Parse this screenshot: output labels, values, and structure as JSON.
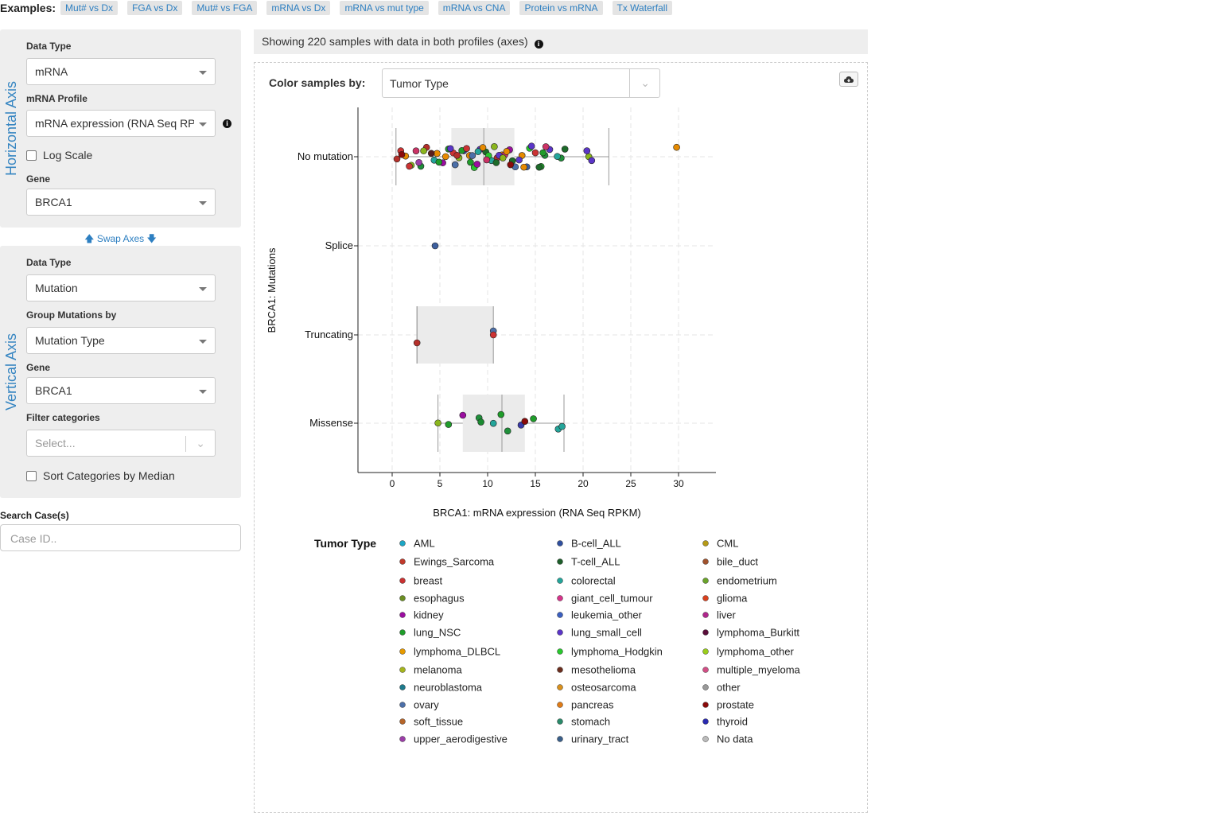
{
  "examples": {
    "label": "Examples:",
    "items": [
      "Mut# vs Dx",
      "FGA vs Dx",
      "Mut# vs FGA",
      "mRNA vs Dx",
      "mRNA vs mut type",
      "mRNA vs CNA",
      "Protein vs mRNA",
      "Tx Waterfall"
    ]
  },
  "horizontal": {
    "title": "Horizontal Axis",
    "data_type_label": "Data Type",
    "data_type_value": "mRNA",
    "profile_label": "mRNA Profile",
    "profile_value": "mRNA expression (RNA Seq RP...",
    "log_scale_label": "Log Scale",
    "gene_label": "Gene",
    "gene_value": "BRCA1"
  },
  "swap_label": "Swap Axes",
  "vertical": {
    "title": "Vertical Axis",
    "data_type_label": "Data Type",
    "data_type_value": "Mutation",
    "group_label": "Group Mutations by",
    "group_value": "Mutation Type",
    "gene_label": "Gene",
    "gene_value": "BRCA1",
    "filter_label": "Filter categories",
    "filter_placeholder": "Select...",
    "sort_label": "Sort Categories by Median"
  },
  "search": {
    "label": "Search Case(s)",
    "placeholder": "Case ID.."
  },
  "showing_text": "Showing 220 samples with data in both profiles (axes)",
  "color_by": {
    "label": "Color samples by:",
    "value": "Tumor Type"
  },
  "chart_data": {
    "type": "scatter",
    "subtype": "horizontal box plot with jittered points",
    "xlabel": "BRCA1: mRNA expression (RNA Seq RPKM)",
    "ylabel": "BRCA1: Mutations",
    "xlim": [
      -3.5,
      34
    ],
    "xticks": [
      0,
      5,
      10,
      15,
      20,
      25,
      30
    ],
    "grid": true,
    "categories": [
      "No mutation",
      "Splice",
      "Truncating",
      "Missense"
    ],
    "boxes": [
      {
        "category": "No mutation",
        "whisker_low": 0.4,
        "q1": 6.2,
        "median": 9.6,
        "q3": 12.8,
        "whisker_high": 22.7
      },
      {
        "category": "Truncating",
        "whisker_low": 2.6,
        "q1": 2.6,
        "median": 2.6,
        "q3": 10.6,
        "whisker_high": 10.6
      },
      {
        "category": "Missense",
        "whisker_low": 4.8,
        "q1": 7.4,
        "median": 11.5,
        "q3": 13.9,
        "whisker_high": 18.0
      }
    ],
    "points": {
      "Splice": [
        {
          "x": 4.5,
          "color": "#3d5f9e"
        }
      ],
      "Truncating": [
        {
          "x": 10.6,
          "color": "#4c6fa8"
        },
        {
          "x": 10.6,
          "color": "#cc3333"
        },
        {
          "x": 2.6,
          "color": "#b5302a"
        }
      ],
      "Missense": [
        {
          "x": 4.8,
          "color": "#8ab51c"
        },
        {
          "x": 5.9,
          "color": "#1f9c2a"
        },
        {
          "x": 7.4,
          "color": "#9b0ea0"
        },
        {
          "x": 9.1,
          "color": "#1f8f3a"
        },
        {
          "x": 9.3,
          "color": "#1a8a30"
        },
        {
          "x": 10.6,
          "color": "#23a59a"
        },
        {
          "x": 11.4,
          "color": "#1f9c2a"
        },
        {
          "x": 12.1,
          "color": "#1f8f3a"
        },
        {
          "x": 13.5,
          "color": "#3a3aa8"
        },
        {
          "x": 13.9,
          "color": "#8a0a0a"
        },
        {
          "x": 14.8,
          "color": "#1f9c2a"
        },
        {
          "x": 17.4,
          "color": "#23a59a"
        },
        {
          "x": 17.8,
          "color": "#23a59a"
        }
      ],
      "No mutation": [
        {
          "x": 29.8,
          "color": "#e68a00"
        },
        {
          "x": 20.6,
          "color": "#8ab51c"
        },
        {
          "x": 20.4,
          "color": "#5b35c8"
        },
        {
          "x": 20.9,
          "color": "#5b35c8"
        },
        {
          "x": 18.1,
          "color": "#1d6b2a"
        },
        {
          "x": 17.7,
          "color": "#1f8f3a"
        },
        {
          "x": 17.3,
          "color": "#23a59a"
        },
        {
          "x": 16.5,
          "color": "#5b35c8"
        },
        {
          "x": 16.1,
          "color": "#cc3366"
        },
        {
          "x": 15.6,
          "color": "#1f9c2a"
        },
        {
          "x": 15.4,
          "color": "#1d6b2a"
        },
        {
          "x": 14.4,
          "color": "#29c72e"
        },
        {
          "x": 13.6,
          "color": "#e68a00"
        },
        {
          "x": 12.9,
          "color": "#4c6fa8"
        },
        {
          "x": 12.3,
          "color": "#9b0ea0"
        },
        {
          "x": 11.5,
          "color": "#e68a00"
        },
        {
          "x": 11.0,
          "color": "#b5302a"
        },
        {
          "x": 10.4,
          "color": "#23a59a"
        },
        {
          "x": 9.8,
          "color": "#1d6b2a"
        },
        {
          "x": 9.2,
          "color": "#5b35c8"
        },
        {
          "x": 8.6,
          "color": "#29c72e"
        },
        {
          "x": 8.1,
          "color": "#e68a00"
        },
        {
          "x": 7.5,
          "color": "#3a3aa8"
        },
        {
          "x": 7.0,
          "color": "#8ab51c"
        },
        {
          "x": 6.4,
          "color": "#cc3333"
        },
        {
          "x": 5.9,
          "color": "#1f9c2a"
        },
        {
          "x": 5.3,
          "color": "#9b0ea0"
        },
        {
          "x": 4.7,
          "color": "#e68a00"
        },
        {
          "x": 4.1,
          "color": "#5a1e1e"
        },
        {
          "x": 3.6,
          "color": "#b5302a"
        },
        {
          "x": 3.0,
          "color": "#1f8f3a"
        },
        {
          "x": 2.5,
          "color": "#cc3366"
        },
        {
          "x": 2.0,
          "color": "#8ab51c"
        },
        {
          "x": 1.4,
          "color": "#e68a00"
        },
        {
          "x": 0.9,
          "color": "#cc3333"
        },
        {
          "x": 0.5,
          "color": "#b5302a"
        },
        {
          "x": 1.0,
          "color": "#8a0a0a"
        },
        {
          "x": 2.8,
          "color": "#9b3ea8"
        },
        {
          "x": 4.4,
          "color": "#23a59a"
        },
        {
          "x": 6.1,
          "color": "#5b35c8"
        },
        {
          "x": 7.3,
          "color": "#1f9c2a"
        },
        {
          "x": 8.4,
          "color": "#4c6fa8"
        },
        {
          "x": 9.5,
          "color": "#e68a00"
        },
        {
          "x": 10.7,
          "color": "#8ab51c"
        },
        {
          "x": 11.8,
          "color": "#cc3366"
        },
        {
          "x": 12.6,
          "color": "#1d6b2a"
        },
        {
          "x": 13.3,
          "color": "#5b35c8"
        },
        {
          "x": 14.1,
          "color": "#3d5f9e"
        },
        {
          "x": 15.0,
          "color": "#cc3333"
        },
        {
          "x": 16.0,
          "color": "#1f8f3a"
        },
        {
          "x": 5.6,
          "color": "#e68a00"
        },
        {
          "x": 6.8,
          "color": "#b5302a"
        },
        {
          "x": 8.9,
          "color": "#9b0ea0"
        },
        {
          "x": 10.1,
          "color": "#29c72e"
        },
        {
          "x": 11.2,
          "color": "#5b35c8"
        },
        {
          "x": 12.0,
          "color": "#e68a00"
        },
        {
          "x": 3.3,
          "color": "#8ab51c"
        },
        {
          "x": 4.9,
          "color": "#1f9c2a"
        },
        {
          "x": 7.8,
          "color": "#cc3333"
        },
        {
          "x": 9.0,
          "color": "#23a59a"
        },
        {
          "x": 10.9,
          "color": "#1d6b2a"
        },
        {
          "x": 12.4,
          "color": "#8a0a0a"
        },
        {
          "x": 13.8,
          "color": "#e68a00"
        },
        {
          "x": 1.8,
          "color": "#cc3333"
        },
        {
          "x": 6.6,
          "color": "#4c6fa8"
        },
        {
          "x": 8.2,
          "color": "#1f9c2a"
        },
        {
          "x": 9.9,
          "color": "#cc3366"
        },
        {
          "x": 11.6,
          "color": "#8ab51c"
        },
        {
          "x": 14.6,
          "color": "#5b35c8"
        },
        {
          "x": 15.8,
          "color": "#1f9c2a"
        }
      ]
    }
  },
  "legend": {
    "title": "Tumor Type",
    "items": [
      {
        "label": "AML",
        "color": "#1ca6c4"
      },
      {
        "label": "B-cell_ALL",
        "color": "#2f4f9e"
      },
      {
        "label": "CML",
        "color": "#b59a16"
      },
      {
        "label": "Ewings_Sarcoma",
        "color": "#c0392b"
      },
      {
        "label": "T-cell_ALL",
        "color": "#1d5e2a"
      },
      {
        "label": "bile_duct",
        "color": "#a0522d"
      },
      {
        "label": "breast",
        "color": "#c93232"
      },
      {
        "label": "colorectal",
        "color": "#23a59a"
      },
      {
        "label": "endometrium",
        "color": "#6aa32a"
      },
      {
        "label": "esophagus",
        "color": "#6b8e23"
      },
      {
        "label": "giant_cell_tumour",
        "color": "#d6338a"
      },
      {
        "label": "glioma",
        "color": "#d9411e"
      },
      {
        "label": "kidney",
        "color": "#9b0ea0"
      },
      {
        "label": "leukemia_other",
        "color": "#3a5fc0"
      },
      {
        "label": "liver",
        "color": "#b0268c"
      },
      {
        "label": "lung_NSC",
        "color": "#1f9c2a"
      },
      {
        "label": "lung_small_cell",
        "color": "#5b35c8"
      },
      {
        "label": "lymphoma_Burkitt",
        "color": "#5a0e3a"
      },
      {
        "label": "lymphoma_DLBCL",
        "color": "#e69a00"
      },
      {
        "label": "lymphoma_Hodgkin",
        "color": "#29c72e"
      },
      {
        "label": "lymphoma_other",
        "color": "#9acd1c"
      },
      {
        "label": "melanoma",
        "color": "#a5b51c"
      },
      {
        "label": "mesothelioma",
        "color": "#6b2e1e"
      },
      {
        "label": "multiple_myeloma",
        "color": "#d24f86"
      },
      {
        "label": "neuroblastoma",
        "color": "#1e7a8c"
      },
      {
        "label": "osteosarcoma",
        "color": "#d9901c"
      },
      {
        "label": "other",
        "color": "#999999"
      },
      {
        "label": "ovary",
        "color": "#4c6fa8"
      },
      {
        "label": "pancreas",
        "color": "#e07b16"
      },
      {
        "label": "prostate",
        "color": "#8a0a0a"
      },
      {
        "label": "soft_tissue",
        "color": "#b5652a"
      },
      {
        "label": "stomach",
        "color": "#2a8a6a"
      },
      {
        "label": "thyroid",
        "color": "#2a2ab0"
      },
      {
        "label": "upper_aerodigestive",
        "color": "#9b3ea8"
      },
      {
        "label": "urinary_tract",
        "color": "#3a5f8a"
      },
      {
        "label": "No data",
        "color": "#bbbbbb"
      }
    ]
  }
}
